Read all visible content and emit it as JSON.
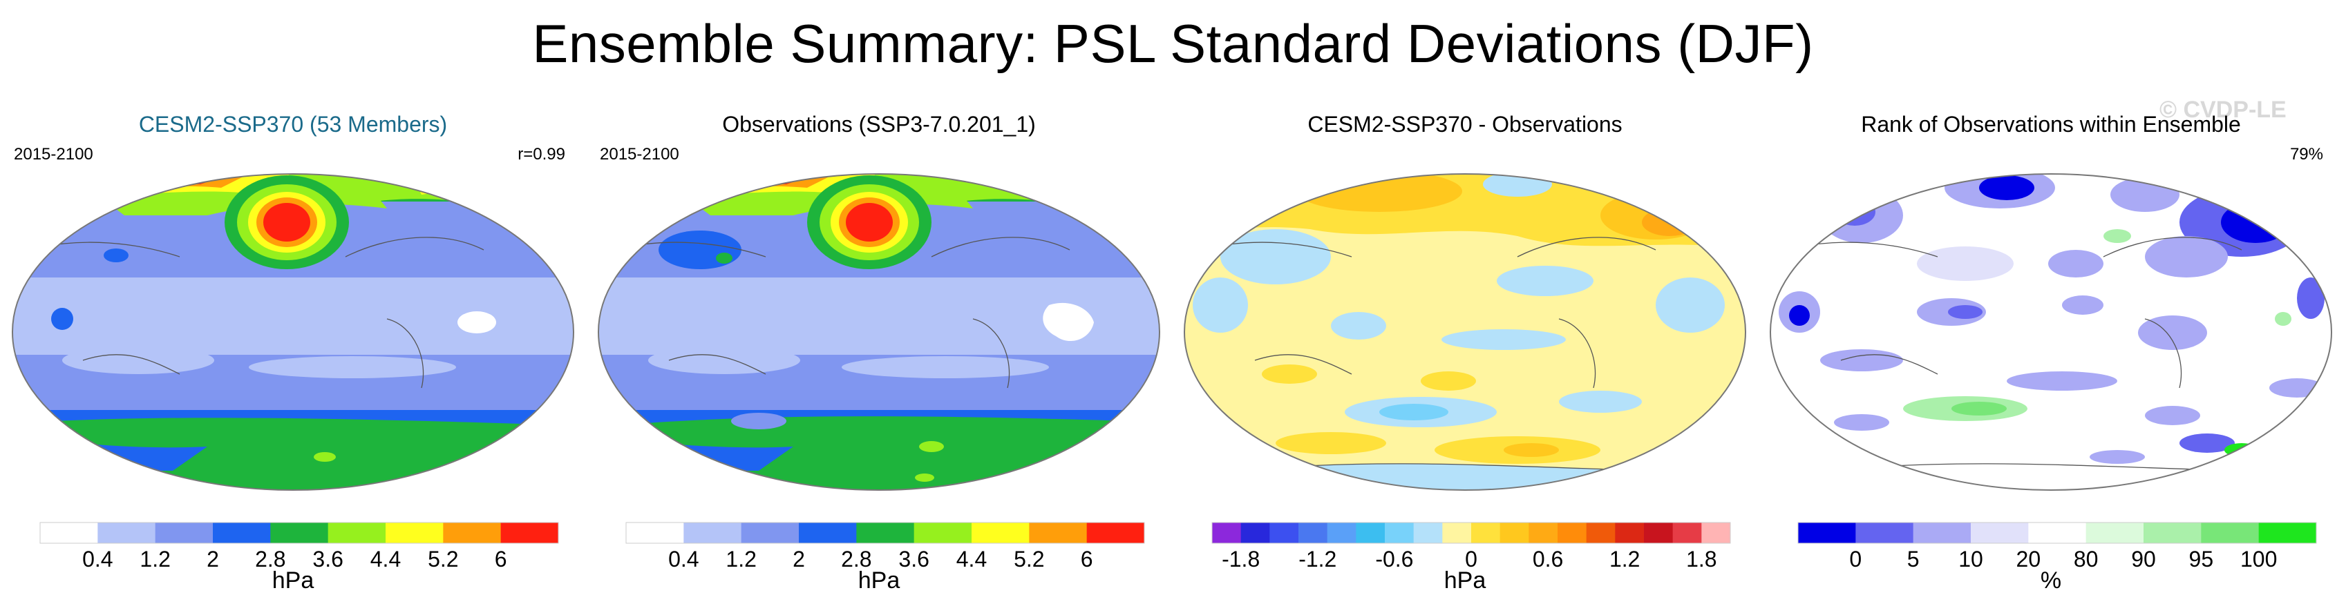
{
  "title": "Ensemble Summary: PSL Standard Deviations (DJF)",
  "watermark": "© CVDP-LE",
  "panels": [
    {
      "title": "CESM2-SSP370 (53 Members)",
      "left_label": "2015-2100",
      "right_label": "r=0.99",
      "unit": "hPa",
      "colorbar": {
        "colors": [
          "#ffffff",
          "#b4c4f8",
          "#8096f0",
          "#1e64f0",
          "#1eb43c",
          "#96f01e",
          "#ffff1e",
          "#ff9e0a",
          "#ff2010"
        ],
        "labels": [
          "0.4",
          "1.2",
          "2",
          "2.8",
          "3.6",
          "4.4",
          "5.2",
          "6"
        ]
      }
    },
    {
      "title": "Observations (SSP3-7.0.201_1)",
      "left_label": "2015-2100",
      "right_label": "",
      "unit": "hPa",
      "colorbar": {
        "colors": [
          "#ffffff",
          "#b4c4f8",
          "#8096f0",
          "#1e64f0",
          "#1eb43c",
          "#96f01e",
          "#ffff1e",
          "#ff9e0a",
          "#ff2010"
        ],
        "labels": [
          "0.4",
          "1.2",
          "2",
          "2.8",
          "3.6",
          "4.4",
          "5.2",
          "6"
        ]
      }
    },
    {
      "title": "CESM2-SSP370 - Observations",
      "left_label": "",
      "right_label": "",
      "unit": "hPa",
      "colorbar": {
        "colors": [
          "#8c28dc",
          "#2828dc",
          "#3c50f0",
          "#4a78f0",
          "#5aa0f8",
          "#3cbef0",
          "#78d2fa",
          "#b4e1fa",
          "#fff5a0",
          "#ffe13c",
          "#ffc81e",
          "#ffaa14",
          "#ff8c0a",
          "#f05a0a",
          "#dc2814",
          "#c8141e",
          "#e63c46",
          "#ffb4b4"
        ],
        "labels": [
          "-1.8",
          "-1.2",
          "-0.6",
          "0",
          "0.6",
          "1.2",
          "1.8"
        ]
      }
    },
    {
      "title": "Rank of Observations within Ensemble",
      "left_label": "",
      "right_label": "79%",
      "unit": "%",
      "colorbar": {
        "colors": [
          "#0000e6",
          "#6464f0",
          "#aaaaf5",
          "#e1e1fa",
          "#ffffff",
          "#dcfadc",
          "#aaf0aa",
          "#78e678",
          "#1ee61e"
        ],
        "labels": [
          "0",
          "5",
          "10",
          "20",
          "80",
          "90",
          "95",
          "100"
        ]
      }
    }
  ]
}
